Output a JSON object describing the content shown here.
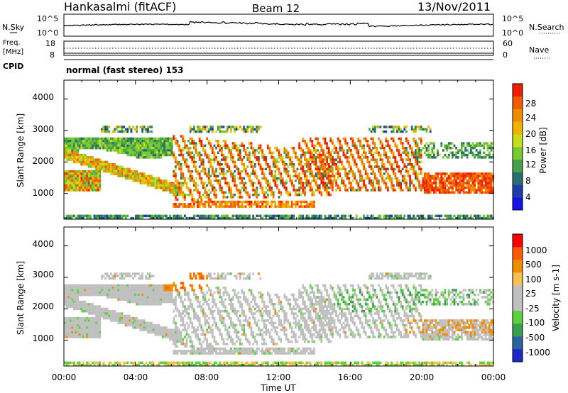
{
  "header": {
    "title": "Hankasalmi (fitACF)",
    "beam": "Beam 12",
    "date": "13/Nov/2011"
  },
  "noise_panel": {
    "left_label": "N.Sky",
    "right_label": "N.Search",
    "left_ticks": [
      "10^5",
      "10^0"
    ],
    "right_ticks": [
      "10^5",
      "10^0"
    ]
  },
  "freq_panel": {
    "left_label_1": "Freq.",
    "left_label_2": "[MHz]",
    "left_ticks": [
      "18",
      "8"
    ],
    "right_label": "Nave",
    "right_ticks": [
      "60",
      "0"
    ]
  },
  "cpid_panel": {
    "label": "CPID",
    "text": "normal (fast stereo) 153"
  },
  "x_axis": {
    "label": "Time UT",
    "ticks": [
      "00:00",
      "04:00",
      "08:00",
      "12:00",
      "16:00",
      "20:00",
      "00:00"
    ]
  },
  "colors": {
    "power_scale": [
      "#1414e6",
      "#1e3caa",
      "#286e6e",
      "#46a046",
      "#78c832",
      "#c8dc1e",
      "#f0b400",
      "#f08c00",
      "#f05a00",
      "#f01e00"
    ],
    "velocity_scale": [
      "#ff0000",
      "#ff5a00",
      "#f08c00",
      "#f5c050",
      "#c0c0c0",
      "#c0c0c0",
      "#5ad23c",
      "#3ca050",
      "#2864a0",
      "#1e28c8"
    ]
  },
  "chart_data": [
    {
      "type": "heatmap",
      "title": "",
      "ylabel": "Slant Range [km]",
      "xlabel": "",
      "xlim": [
        "00:00",
        "24:00"
      ],
      "ylim": [
        180,
        4600
      ],
      "yticks": [
        "1000",
        "2000",
        "3000",
        "4000"
      ],
      "colorbar": {
        "label": "Power [dB]",
        "ticks": [
          "4",
          "8",
          "12",
          "16",
          "20",
          "24",
          "28"
        ],
        "range": [
          0,
          30
        ]
      }
    },
    {
      "type": "heatmap",
      "title": "",
      "ylabel": "Slant Range [km]",
      "xlabel": "Time UT",
      "xlim": [
        "00:00",
        "24:00"
      ],
      "ylim": [
        180,
        4600
      ],
      "yticks": [
        "1000",
        "2000",
        "3000",
        "4000"
      ],
      "colorbar": {
        "label": "Velocity [m s-1]",
        "ticks": [
          "1000",
          "500",
          "100",
          "25",
          "-25",
          "-100",
          "-500",
          "-1000"
        ]
      }
    }
  ]
}
